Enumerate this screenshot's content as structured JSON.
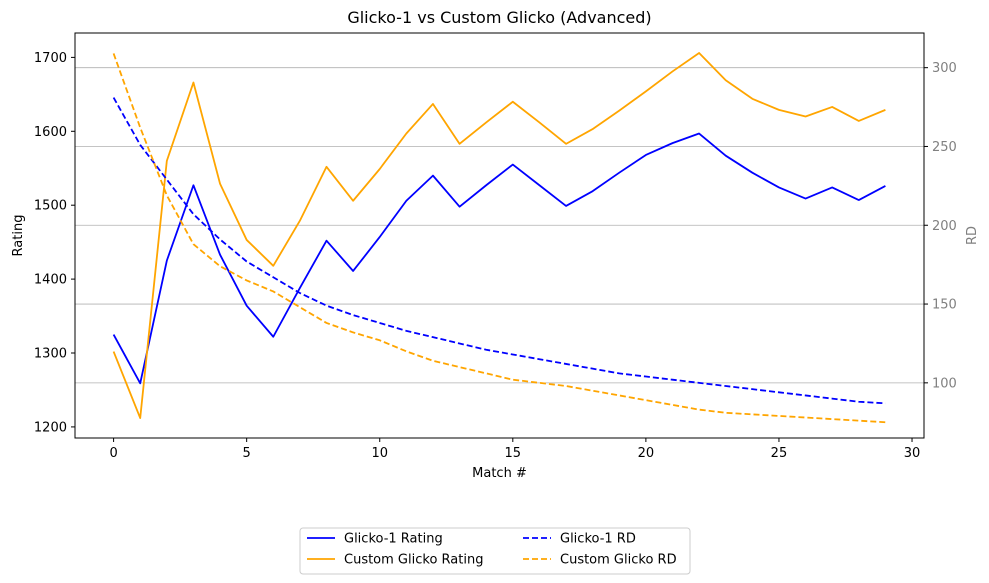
{
  "chart_data": {
    "type": "line",
    "title": "Glicko-1 vs Custom Glicko (Advanced)",
    "xlabel": "Match #",
    "ylabel": "Rating",
    "y2label": "RD",
    "xlim": [
      -1.45,
      30.45
    ],
    "ylim": [
      1185,
      1733
    ],
    "y2lim": [
      65,
      322
    ],
    "xticks": [
      0,
      5,
      10,
      15,
      20,
      25,
      30
    ],
    "yticks": [
      1200,
      1300,
      1400,
      1500,
      1600,
      1700
    ],
    "y2ticks": [
      100,
      150,
      200,
      250,
      300
    ],
    "grid": "right-axis horizontal",
    "legend_position": "bottom-center",
    "x": [
      0,
      1,
      2,
      3,
      4,
      5,
      6,
      7,
      8,
      9,
      10,
      11,
      12,
      13,
      14,
      15,
      16,
      17,
      18,
      19,
      20,
      21,
      22,
      23,
      24,
      25,
      26,
      27,
      28,
      29
    ],
    "series": [
      {
        "name": "Glicko-1 Rating",
        "axis": "left",
        "color": "#0000ff",
        "style": "solid",
        "values": [
          1325,
          1259,
          1425,
          1527,
          1433,
          1364,
          1322,
          1388,
          1452,
          1411,
          1457,
          1506,
          1540,
          1498,
          1527,
          1555,
          1527,
          1499,
          1519,
          1544,
          1568,
          1584,
          1597,
          1567,
          1544,
          1524,
          1509,
          1524,
          1507,
          1526
        ]
      },
      {
        "name": "Custom Glicko Rating",
        "axis": "left",
        "color": "#ffa500",
        "style": "solid",
        "values": [
          1302,
          1212,
          1560,
          1666,
          1529,
          1453,
          1418,
          1479,
          1552,
          1506,
          1549,
          1597,
          1637,
          1583,
          1612,
          1640,
          1612,
          1583,
          1603,
          1628,
          1654,
          1681,
          1706,
          1669,
          1644,
          1629,
          1620,
          1633,
          1614,
          1629
        ]
      },
      {
        "name": "Glicko-1 RD",
        "axis": "right",
        "color": "#0000ff",
        "style": "dashed",
        "values": [
          281,
          251,
          229,
          207,
          191,
          177,
          167,
          157,
          149,
          143,
          138,
          133,
          129,
          125,
          121,
          118,
          115,
          112,
          109,
          106,
          104,
          102,
          100,
          98,
          96,
          94,
          92,
          90,
          88,
          87
        ]
      },
      {
        "name": "Custom Glicko RD",
        "axis": "right",
        "color": "#ffa500",
        "style": "dashed",
        "values": [
          309,
          262,
          219,
          188,
          174,
          165,
          158,
          148,
          138,
          132,
          127,
          120,
          114,
          110,
          106,
          102,
          100,
          98,
          95,
          92,
          89,
          86,
          83,
          81,
          80,
          79,
          78,
          77,
          76,
          75
        ]
      }
    ]
  }
}
